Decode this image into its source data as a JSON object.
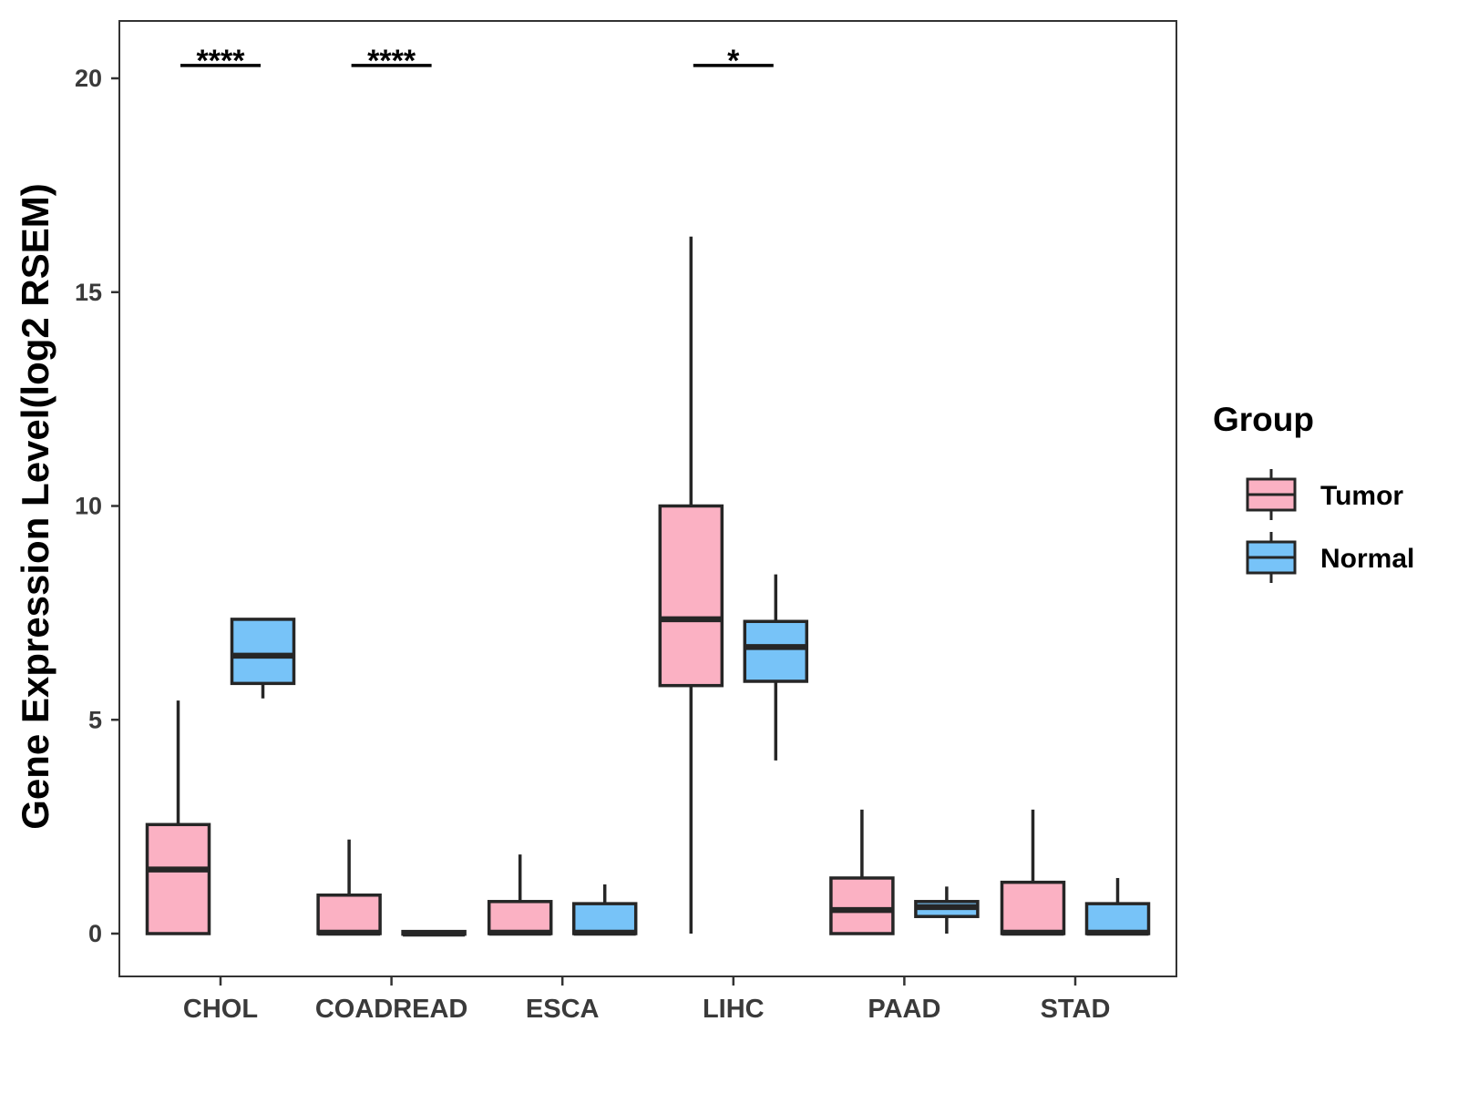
{
  "chart_data": {
    "type": "boxplot",
    "title": "",
    "xlabel": "",
    "ylabel": "Gene Expression Level(log2 RSEM)",
    "ylim": [
      -1,
      21.4
    ],
    "yticks": [
      0,
      5,
      10,
      15,
      20
    ],
    "categories": [
      "CHOL",
      "COADREAD",
      "ESCA",
      "LIHC",
      "PAAD",
      "STAD"
    ],
    "series": [
      {
        "name": "Tumor",
        "color": "#FBB1C3",
        "boxes": [
          {
            "min": 0,
            "q1": 0,
            "median": 1.5,
            "q3": 2.55,
            "max": 5.45
          },
          {
            "min": 0,
            "q1": 0,
            "median": 0.02,
            "q3": 0.9,
            "max": 2.2
          },
          {
            "min": 0,
            "q1": 0,
            "median": 0.02,
            "q3": 0.75,
            "max": 1.85
          },
          {
            "min": 0,
            "q1": 5.8,
            "median": 7.35,
            "q3": 10.0,
            "max": 16.3
          },
          {
            "min": 0,
            "q1": 0,
            "median": 0.55,
            "q3": 1.3,
            "max": 2.9
          },
          {
            "min": 0,
            "q1": 0,
            "median": 0.02,
            "q3": 1.2,
            "max": 2.9
          }
        ]
      },
      {
        "name": "Normal",
        "color": "#77C3F8",
        "boxes": [
          {
            "min": 5.5,
            "q1": 5.85,
            "median": 6.5,
            "q3": 7.35,
            "max": 7.35
          },
          {
            "min": 0,
            "q1": 0,
            "median": 0,
            "q3": 0.05,
            "max": 0.05
          },
          {
            "min": 0,
            "q1": 0,
            "median": 0.02,
            "q3": 0.7,
            "max": 1.15
          },
          {
            "min": 4.05,
            "q1": 5.9,
            "median": 6.7,
            "q3": 7.3,
            "max": 8.4
          },
          {
            "min": 0,
            "q1": 0.4,
            "median": 0.62,
            "q3": 0.75,
            "max": 1.1
          },
          {
            "min": 0,
            "q1": 0,
            "median": 0.02,
            "q3": 0.7,
            "max": 1.3
          }
        ]
      }
    ],
    "significance": [
      {
        "category": "CHOL",
        "label": "****"
      },
      {
        "category": "COADREAD",
        "label": "****"
      },
      {
        "category": "LIHC",
        "label": "*"
      }
    ],
    "significance_y": 20.3,
    "legend": {
      "title": "Group",
      "position": "right"
    },
    "grid": false
  }
}
